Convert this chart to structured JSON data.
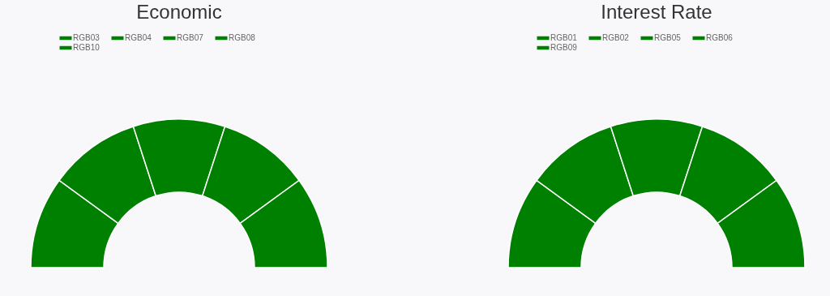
{
  "chart_data": [
    {
      "type": "donut",
      "title": "Economic",
      "categories": [
        "RGB03",
        "RGB04",
        "RGB07",
        "RGB08",
        "RGB10"
      ],
      "values": [
        20,
        20,
        20,
        20,
        20
      ],
      "colors": [
        "#008000",
        "#008000",
        "#008000",
        "#008000",
        "#008000"
      ],
      "legend": "top"
    },
    {
      "type": "donut",
      "title": "Interest Rate",
      "categories": [
        "RGB01",
        "RGB02",
        "RGB05",
        "RGB06",
        "RGB09"
      ],
      "values": [
        20,
        20,
        20,
        20,
        20
      ],
      "colors": [
        "#008000",
        "#008000",
        "#008000",
        "#008000",
        "#008000"
      ],
      "legend": "top"
    }
  ]
}
